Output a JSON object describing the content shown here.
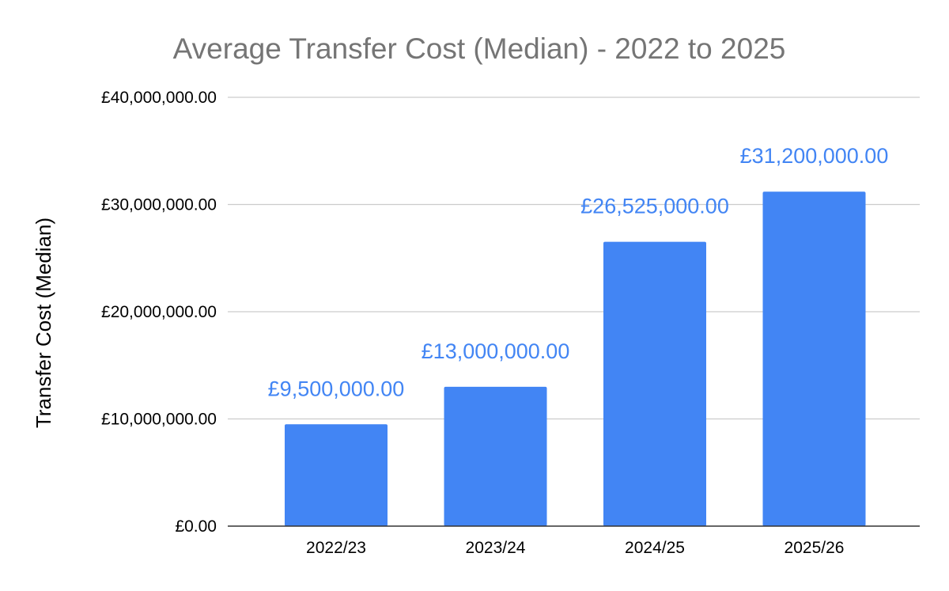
{
  "chart_data": {
    "type": "bar",
    "title": "Average Transfer Cost (Median) - 2022 to 2025",
    "xlabel": "",
    "ylabel": "Transfer Cost (Median)",
    "categories": [
      "2022/23",
      "2023/24",
      "2024/25",
      "2025/26"
    ],
    "values": [
      9500000,
      13000000,
      26525000,
      31200000
    ],
    "data_labels": [
      "£9,500,000.00",
      "£13,000,000.00",
      "£26,525,000.00",
      "£31,200,000.00"
    ],
    "ylim": [
      0,
      40000000
    ],
    "yticks": [
      0,
      10000000,
      20000000,
      30000000,
      40000000
    ],
    "ytick_labels": [
      "£0.00",
      "£10,000,000.00",
      "£20,000,000.00",
      "£30,000,000.00",
      "£40,000,000.00"
    ],
    "grid": true,
    "legend": "none",
    "colors": {
      "bar": "#4285f4",
      "data_label": "#4285f4",
      "title": "#757575",
      "grid": "#cccccc",
      "baseline": "#333333"
    }
  }
}
